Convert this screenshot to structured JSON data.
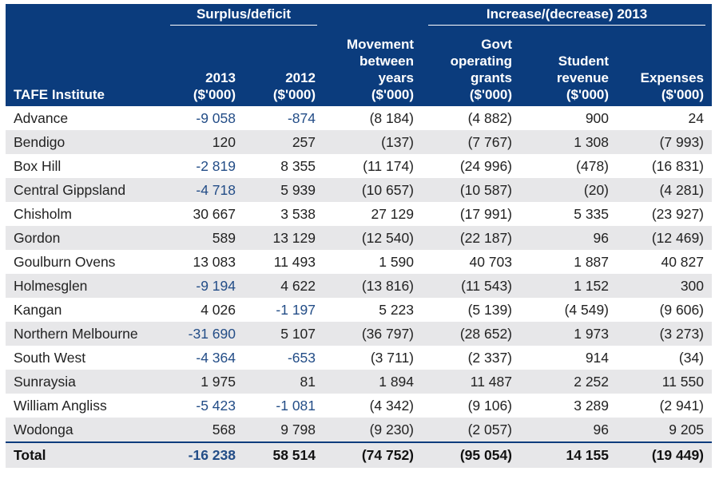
{
  "header": {
    "group_surplus": "Surplus/deficit",
    "group_increase": "Increase/(decrease) 2013",
    "institute": "TAFE Institute",
    "col_2013": [
      "2013",
      "($'000)"
    ],
    "col_2012": [
      "2012",
      "($'000)"
    ],
    "col_movement": [
      "Movement",
      "between",
      "years",
      "($'000)"
    ],
    "col_govt": [
      "Govt",
      "operating",
      "grants",
      "($'000)"
    ],
    "col_student": [
      "Student",
      "revenue",
      "($'000)"
    ],
    "col_expenses": [
      "Expenses",
      "($'000)"
    ]
  },
  "rows": [
    {
      "name": "Advance",
      "s2013": "-9 058",
      "s2012": "-874",
      "movement": "(8 184)",
      "govt": "(4 882)",
      "student": "900",
      "expenses": "24"
    },
    {
      "name": "Bendigo",
      "s2013": "120",
      "s2012": "257",
      "movement": "(137)",
      "govt": "(7 767)",
      "student": "1 308",
      "expenses": "(7 993)"
    },
    {
      "name": "Box Hill",
      "s2013": "-2 819",
      "s2012": "8 355",
      "movement": "(11 174)",
      "govt": "(24 996)",
      "student": "(478)",
      "expenses": "(16 831)"
    },
    {
      "name": "Central Gippsland",
      "s2013": "-4 718",
      "s2012": "5 939",
      "movement": "(10 657)",
      "govt": "(10 587)",
      "student": "(20)",
      "expenses": "(4 281)"
    },
    {
      "name": "Chisholm",
      "s2013": "30 667",
      "s2012": "3 538",
      "movement": "27 129",
      "govt": "(17 991)",
      "student": "5 335",
      "expenses": "(23 927)"
    },
    {
      "name": "Gordon",
      "s2013": "589",
      "s2012": "13 129",
      "movement": "(12 540)",
      "govt": "(22 187)",
      "student": "96",
      "expenses": "(12 469)"
    },
    {
      "name": "Goulburn Ovens",
      "s2013": "13 083",
      "s2012": "11 493",
      "movement": "1 590",
      "govt": "40 703",
      "student": "1 887",
      "expenses": "40 827"
    },
    {
      "name": "Holmesglen",
      "s2013": "-9 194",
      "s2012": "4 622",
      "movement": "(13 816)",
      "govt": "(11 543)",
      "student": "1 152",
      "expenses": "300"
    },
    {
      "name": "Kangan",
      "s2013": "4 026",
      "s2012": "-1 197",
      "movement": "5 223",
      "govt": "(5 139)",
      "student": "(4 549)",
      "expenses": "(9 606)"
    },
    {
      "name": "Northern Melbourne",
      "s2013": "-31 690",
      "s2012": "5 107",
      "movement": "(36 797)",
      "govt": "(28 652)",
      "student": "1 973",
      "expenses": "(3 273)"
    },
    {
      "name": "South West",
      "s2013": "-4 364",
      "s2012": "-653",
      "movement": "(3 711)",
      "govt": "(2 337)",
      "student": "914",
      "expenses": "(34)"
    },
    {
      "name": "Sunraysia",
      "s2013": "1 975",
      "s2012": "81",
      "movement": "1 894",
      "govt": "11 487",
      "student": "2 252",
      "expenses": "11 550"
    },
    {
      "name": "William Angliss",
      "s2013": "-5 423",
      "s2012": "-1 081",
      "movement": "(4 342)",
      "govt": "(9 106)",
      "student": "3 289",
      "expenses": "(2 941)"
    },
    {
      "name": "Wodonga",
      "s2013": "568",
      "s2012": "9 798",
      "movement": "(9 230)",
      "govt": "(2 057)",
      "student": "96",
      "expenses": "9 205"
    }
  ],
  "total": {
    "name": "Total",
    "s2013": "-16 238",
    "s2012": "58 514",
    "movement": "(74 752)",
    "govt": "(95 054)",
    "student": "14 155",
    "expenses": "(19 449)"
  },
  "colors": {
    "header_bg": "#0b3c7d",
    "stripe_bg": "#e7e7e9",
    "negative_text": "#234d87"
  }
}
